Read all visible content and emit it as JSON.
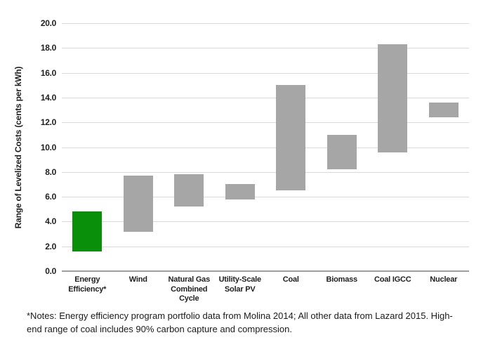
{
  "chart_data": {
    "type": "bar",
    "variant": "floating-range-columns",
    "title": "",
    "xlabel": "",
    "ylabel": "Range of Levelized Costs (cents per kWh)",
    "units": "cents per kWh",
    "ylim": [
      0,
      20
    ],
    "yticks": [
      0,
      2,
      4,
      6,
      8,
      10,
      12,
      14,
      16,
      18,
      20
    ],
    "ytick_labels": [
      "0.0",
      "2.0",
      "4.0",
      "6.0",
      "8.0",
      "10.0",
      "12.0",
      "14.0",
      "16.0",
      "18.0",
      "20.0"
    ],
    "grid": true,
    "legend": false,
    "categories": [
      "Energy\nEfficiency*",
      "Wind",
      "Natural Gas\nCombined\nCycle",
      "Utility-Scale\nSolar PV",
      "Coal",
      "Biomass",
      "Coal IGCC",
      "Nuclear"
    ],
    "bars": [
      {
        "name": "Energy Efficiency*",
        "low": 1.6,
        "high": 4.8,
        "color": "#0a8f0a"
      },
      {
        "name": "Wind",
        "low": 3.2,
        "high": 7.7,
        "color": "#a6a6a6"
      },
      {
        "name": "Natural Gas Combined Cycle",
        "low": 5.2,
        "high": 7.8,
        "color": "#a6a6a6"
      },
      {
        "name": "Utility-Scale Solar PV",
        "low": 5.8,
        "high": 7.0,
        "color": "#a6a6a6"
      },
      {
        "name": "Coal",
        "low": 6.5,
        "high": 15.0,
        "color": "#a6a6a6"
      },
      {
        "name": "Biomass",
        "low": 8.2,
        "high": 11.0,
        "color": "#a6a6a6"
      },
      {
        "name": "Coal IGCC",
        "low": 9.6,
        "high": 18.3,
        "color": "#a6a6a6"
      },
      {
        "name": "Nuclear",
        "low": 12.4,
        "high": 13.6,
        "color": "#a6a6a6"
      }
    ]
  },
  "notes": {
    "text": "*Notes: Energy efficiency program portfolio data from Molina 2014; All other data from Lazard 2015. High-\nend range of coal includes 90% carbon capture and compression."
  },
  "colors": {
    "background": "#ffffff",
    "bar_default": "#a6a6a6",
    "bar_highlight": "#0a8f0a",
    "gridline": "#d9d9d9",
    "axis_line": "#a0a0a0",
    "text": "#1f1f1f"
  }
}
